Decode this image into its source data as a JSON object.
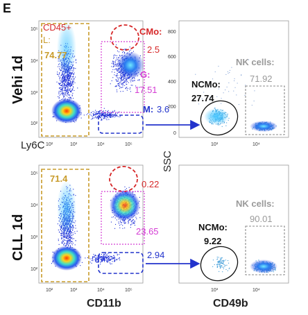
{
  "panel_label": "E",
  "rows": [
    {
      "label": "Vehi 1d",
      "left_plot": {
        "title": "CD45+",
        "gates": [
          {
            "name": "L:",
            "value": "74.77",
            "color": "#c89b2a"
          },
          {
            "name": "CMo:",
            "value": "2.5",
            "color": "#d62728"
          },
          {
            "name": "G:",
            "value": "17.51",
            "color": "#d43cd4"
          },
          {
            "name": "M:",
            "value": "3.6",
            "color": "#2233cc"
          }
        ]
      },
      "right_plot": {
        "gates": [
          {
            "name": "NK cells:",
            "value": "71.92",
            "color": "#9a9a9a"
          },
          {
            "name": "NCMo:",
            "value": "27.74",
            "color": "#111111"
          }
        ]
      }
    },
    {
      "label": "CLL 1d",
      "left_plot": {
        "gates": [
          {
            "name": "",
            "value": "71.4",
            "color": "#c89b2a"
          },
          {
            "name": "",
            "value": "0.22",
            "color": "#d62728"
          },
          {
            "name": "",
            "value": "23.65",
            "color": "#d43cd4"
          },
          {
            "name": "",
            "value": "2.94",
            "color": "#2233cc"
          }
        ]
      },
      "right_plot": {
        "gates": [
          {
            "name": "NK cells:",
            "value": "90.01",
            "color": "#9a9a9a"
          },
          {
            "name": "NCMo:",
            "value": "9.22",
            "color": "#111111"
          }
        ]
      }
    }
  ],
  "left_axes": {
    "y_label": "Ly6C",
    "x_label": "CD11b",
    "x_ticks": [
      "10²",
      "10³",
      "10⁴",
      "10⁵"
    ],
    "y_ticks": [
      "10⁵",
      "10⁴",
      "10³",
      "10²"
    ]
  },
  "right_axes": {
    "y_label": "SSC",
    "x_label": "CD49b",
    "x_ticks": [
      "10³",
      "10⁴"
    ],
    "y_ticks": [
      "800",
      "600",
      "400",
      "200",
      "0"
    ]
  },
  "colors": {
    "lymph_gate": "#c89b2a",
    "cmo_gate": "#d62728",
    "g_gate": "#d43cd4",
    "m_gate": "#2233cc",
    "nk_gate": "#9a9a9a",
    "arrow": "#2233cc",
    "density_low": "#1a2cd6",
    "density_high": "#ffd21a"
  }
}
